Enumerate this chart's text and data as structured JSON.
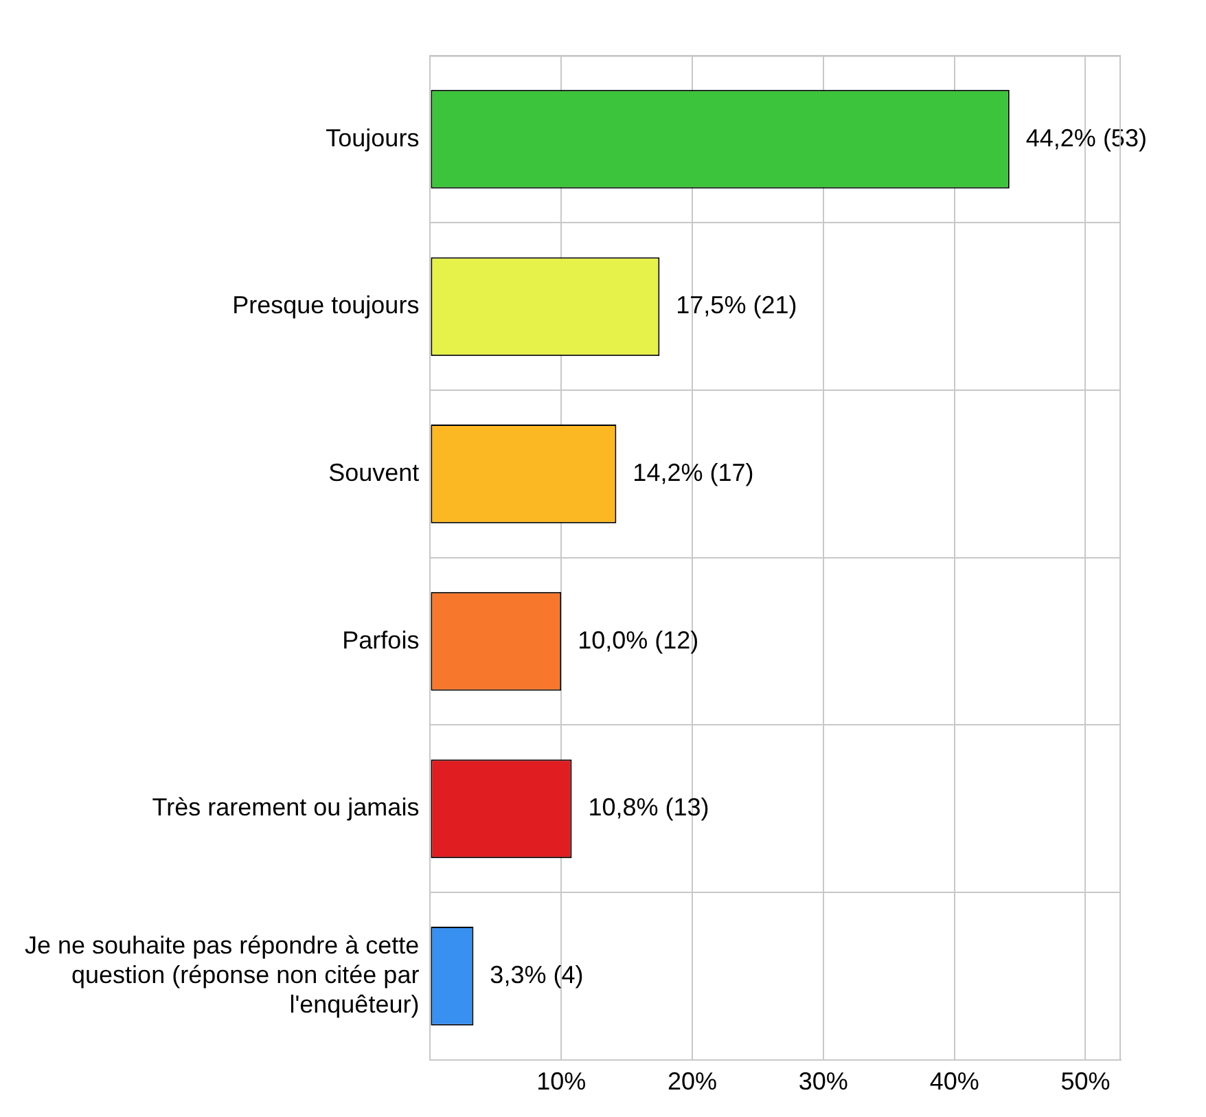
{
  "chart_data": {
    "type": "bar",
    "orientation": "horizontal",
    "categories": [
      "Toujours",
      "Presque toujours",
      "Souvent",
      "Parfois",
      "Très rarement ou jamais",
      "Je ne souhaite pas répondre à cette question (réponse non citée par l'enquêteur)"
    ],
    "values": [
      44.2,
      17.5,
      14.2,
      10.0,
      10.8,
      3.3
    ],
    "colors": [
      "#3cc43c",
      "#e6f24a",
      "#fcb822",
      "#f7782c",
      "#e01e22",
      "#3890f0"
    ],
    "value_labels": [
      "44,2% (53)",
      "17,5% (21)",
      "14,2% (17)",
      "10,0% (12)",
      "10,8% (13)",
      "3,3% (4)"
    ],
    "xlim": [
      0,
      52.7
    ],
    "xticks": [
      {
        "value": 0,
        "label": null
      },
      {
        "value": 10,
        "label": "10%"
      },
      {
        "value": 20,
        "label": "20%"
      },
      {
        "value": 30,
        "label": "30%"
      },
      {
        "value": 40,
        "label": "40%"
      },
      {
        "value": 50,
        "label": "50%"
      }
    ],
    "grid": true,
    "legend": false
  }
}
